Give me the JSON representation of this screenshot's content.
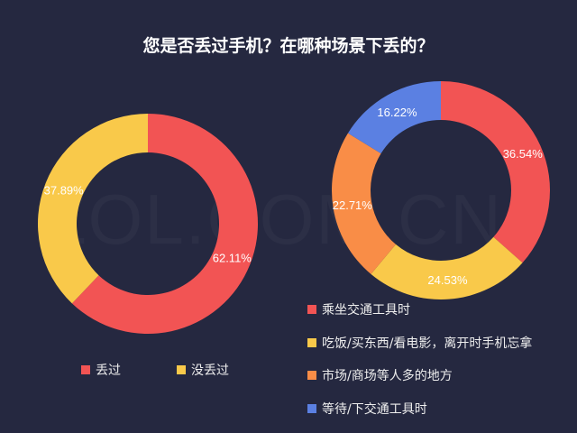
{
  "title": "您是否丢过手机？在哪种场景下丢的？",
  "watermark": "ZOL.COM.CN",
  "chart_data": [
    {
      "type": "pie",
      "donut": true,
      "categories": [
        "丢过",
        "没丢过"
      ],
      "values": [
        62.11,
        37.89
      ],
      "labels": [
        "62.11%",
        "37.89%"
      ],
      "colors": [
        "#f25454",
        "#f9c94a"
      ],
      "legend": "bottom"
    },
    {
      "type": "pie",
      "donut": true,
      "categories": [
        "乘坐交通工具时",
        "吃饭/买东西/看电影，离开时手机忘拿",
        "市场/商场等人多的地方",
        "等待/下交通工具时"
      ],
      "values": [
        36.54,
        24.53,
        22.71,
        16.22
      ],
      "labels": [
        "36.54%",
        "24.53%",
        "22.71%",
        "16.22%"
      ],
      "colors": [
        "#f25454",
        "#f9c94a",
        "#f98d47",
        "#5b80e2"
      ],
      "legend": "bottom-right"
    }
  ]
}
